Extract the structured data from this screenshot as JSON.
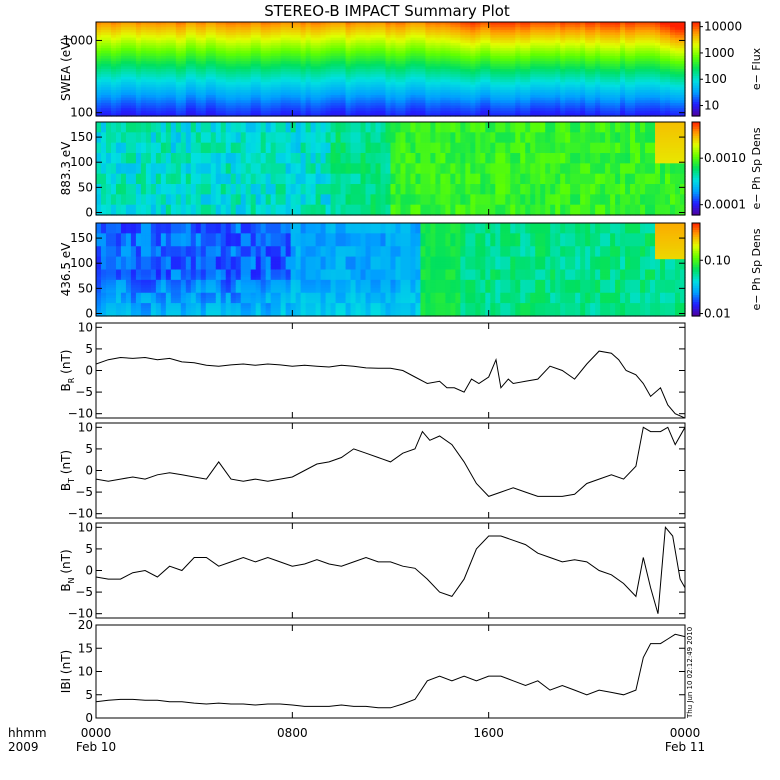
{
  "title": "STEREO-B IMPACT Summary Plot",
  "timestamp": "Thu Jun 10 02:12:49 2010",
  "footer": {
    "hhmm": "hhmm",
    "year": "2009"
  },
  "x_axis": {
    "ticks": [
      {
        "hours": 0,
        "line1": "0000",
        "line2": "Feb 10"
      },
      {
        "hours": 8,
        "line1": "0800",
        "line2": ""
      },
      {
        "hours": 16,
        "line1": "1600",
        "line2": ""
      },
      {
        "hours": 24,
        "line1": "0000",
        "line2": "Feb 11"
      }
    ],
    "range_hours": [
      0,
      24
    ]
  },
  "chart_data": [
    {
      "id": "swea",
      "type": "heatmap",
      "ylabel": "SWEA (eV)",
      "scale": "log",
      "ylim": [
        90,
        1800
      ],
      "yticks": [
        {
          "v": 100,
          "label": "100"
        },
        {
          "v": 1000,
          "label": "1000"
        }
      ],
      "colorbar": {
        "label": "e− Flux",
        "scale": "log",
        "range": [
          4,
          15000
        ],
        "ticks": [
          {
            "v": 10,
            "label": "10"
          },
          {
            "v": 100,
            "label": "100"
          },
          {
            "v": 1000,
            "label": "1000"
          },
          {
            "v": 10000,
            "label": "10000"
          }
        ]
      },
      "colormap": [
        "#5000a0",
        "#2020ff",
        "#00a0ff",
        "#00e0e0",
        "#00e060",
        "#60ff00",
        "#e0ff00",
        "#ffa000",
        "#ff2000"
      ]
    },
    {
      "id": "pad883",
      "type": "heatmap",
      "ylabel": "883.3 eV",
      "scale": "linear",
      "ylim": [
        -5,
        180
      ],
      "yticks": [
        {
          "v": 0,
          "label": "0"
        },
        {
          "v": 50,
          "label": "50"
        },
        {
          "v": 100,
          "label": "100"
        },
        {
          "v": 150,
          "label": "150"
        }
      ],
      "colorbar": {
        "label": "e− Ph Sp Dens",
        "scale": "log",
        "range": [
          6e-05,
          0.006
        ],
        "ticks": [
          {
            "v": 0.0001,
            "label": "0.0001"
          },
          {
            "v": 0.001,
            "label": "0.0010"
          }
        ]
      },
      "colormap": [
        "#5000a0",
        "#2020ff",
        "#00a0ff",
        "#00e0e0",
        "#00e060",
        "#60ff00",
        "#e0ff00",
        "#ffa000",
        "#ff2000"
      ]
    },
    {
      "id": "pad436",
      "type": "heatmap",
      "ylabel": "436.5 eV",
      "scale": "linear",
      "ylim": [
        -5,
        180
      ],
      "yticks": [
        {
          "v": 0,
          "label": "0"
        },
        {
          "v": 50,
          "label": "50"
        },
        {
          "v": 100,
          "label": "100"
        },
        {
          "v": 150,
          "label": "150"
        }
      ],
      "colorbar": {
        "label": "e− Ph Sp Dens",
        "scale": "log",
        "range": [
          0.009,
          0.5
        ],
        "ticks": [
          {
            "v": 0.01,
            "label": "0.01"
          },
          {
            "v": 0.1,
            "label": "0.10"
          }
        ]
      },
      "colormap": [
        "#5000a0",
        "#2020ff",
        "#00a0ff",
        "#00e0e0",
        "#00e060",
        "#60ff00",
        "#e0ff00",
        "#ffa000",
        "#ff2000"
      ]
    },
    {
      "id": "br",
      "type": "line",
      "ylabel": "B",
      "ylabel_sub": "R",
      "ylabel_unit": "(nT)",
      "ylim": [
        -11,
        11
      ],
      "yticks": [
        {
          "v": -10,
          "label": "−10"
        },
        {
          "v": -5,
          "label": "−5"
        },
        {
          "v": 0,
          "label": "0"
        },
        {
          "v": 5,
          "label": "5"
        },
        {
          "v": 10,
          "label": "10"
        }
      ],
      "x": [
        0,
        0.5,
        1,
        1.5,
        2,
        2.5,
        3,
        3.5,
        4,
        4.5,
        5,
        5.5,
        6,
        6.5,
        7,
        7.5,
        8,
        8.5,
        9,
        9.5,
        10,
        10.5,
        11,
        11.5,
        12,
        12.5,
        13,
        13.5,
        14,
        14.3,
        14.6,
        15,
        15.3,
        15.6,
        16,
        16.3,
        16.5,
        16.8,
        17,
        17.5,
        18,
        18.5,
        19,
        19.5,
        20,
        20.5,
        21,
        21.3,
        21.6,
        22,
        22.3,
        22.6,
        23,
        23.3,
        23.6,
        24
      ],
      "y": [
        1.5,
        2.5,
        3,
        2.8,
        3,
        2.5,
        2.8,
        2,
        1.8,
        1.2,
        1,
        1.3,
        1.5,
        1.2,
        1.5,
        1.3,
        1,
        1.2,
        1,
        0.8,
        1.2,
        1,
        0.6,
        0.5,
        0.5,
        0,
        -1.5,
        -3,
        -2.5,
        -4,
        -4,
        -5,
        -2,
        -3,
        -1.5,
        2.5,
        -4,
        -2,
        -3,
        -2.5,
        -2,
        1,
        0,
        -2,
        1.5,
        4.5,
        4,
        2.5,
        0,
        -1,
        -3,
        -6,
        -4,
        -8,
        -10,
        -11
      ]
    },
    {
      "id": "bt",
      "type": "line",
      "ylabel": "B",
      "ylabel_sub": "T",
      "ylabel_unit": "(nT)",
      "ylim": [
        -11,
        11
      ],
      "yticks": [
        {
          "v": -10,
          "label": "−10"
        },
        {
          "v": -5,
          "label": "−5"
        },
        {
          "v": 0,
          "label": "0"
        },
        {
          "v": 5,
          "label": "5"
        },
        {
          "v": 10,
          "label": "10"
        }
      ],
      "x": [
        0,
        0.5,
        1,
        1.5,
        2,
        2.5,
        3,
        3.5,
        4,
        4.5,
        5,
        5.5,
        6,
        6.5,
        7,
        7.5,
        8,
        8.5,
        9,
        9.5,
        10,
        10.5,
        11,
        11.5,
        12,
        12.5,
        13,
        13.3,
        13.6,
        14,
        14.5,
        15,
        15.5,
        16,
        16.5,
        17,
        17.5,
        18,
        18.5,
        19,
        19.5,
        20,
        20.5,
        21,
        21.5,
        22,
        22.3,
        22.6,
        23,
        23.3,
        23.6,
        24
      ],
      "y": [
        -2,
        -2.5,
        -2,
        -1.5,
        -2,
        -1,
        -0.5,
        -1,
        -1.5,
        -2,
        2,
        -2,
        -2.5,
        -2,
        -2.5,
        -2,
        -1.5,
        0,
        1.5,
        2,
        3,
        5,
        4,
        3,
        2,
        4,
        5,
        9,
        7,
        8,
        6,
        2,
        -3,
        -6,
        -5,
        -4,
        -5,
        -6,
        -6,
        -6,
        -5.5,
        -3,
        -2,
        -1,
        -2,
        1,
        10,
        9,
        9,
        10,
        6,
        10
      ]
    },
    {
      "id": "bn",
      "type": "line",
      "ylabel": "B",
      "ylabel_sub": "N",
      "ylabel_unit": "(nT)",
      "ylim": [
        -11,
        11
      ],
      "yticks": [
        {
          "v": -10,
          "label": "−10"
        },
        {
          "v": -5,
          "label": "−5"
        },
        {
          "v": 0,
          "label": "0"
        },
        {
          "v": 5,
          "label": "5"
        },
        {
          "v": 10,
          "label": "10"
        }
      ],
      "x": [
        0,
        0.5,
        1,
        1.5,
        2,
        2.5,
        3,
        3.5,
        4,
        4.5,
        5,
        5.5,
        6,
        6.5,
        7,
        7.5,
        8,
        8.5,
        9,
        9.5,
        10,
        10.5,
        11,
        11.5,
        12,
        12.5,
        13,
        13.5,
        14,
        14.5,
        15,
        15.5,
        16,
        16.5,
        17,
        17.5,
        18,
        18.5,
        19,
        19.5,
        20,
        20.5,
        21,
        21.5,
        22,
        22.3,
        22.6,
        22.9,
        23.2,
        23.5,
        23.8,
        24
      ],
      "y": [
        -1.5,
        -2,
        -2,
        -0.5,
        0,
        -1.5,
        1,
        0,
        3,
        3,
        1,
        2,
        3,
        2,
        3,
        2,
        1,
        1.5,
        2.5,
        1.5,
        1,
        2,
        3,
        2,
        2,
        1,
        0.5,
        -2,
        -5,
        -6,
        -2,
        5,
        8,
        8,
        7,
        6,
        4,
        3,
        2,
        2.5,
        2,
        0,
        -1,
        -3,
        -6,
        3,
        -4,
        -10,
        10,
        8,
        -2,
        -4
      ]
    },
    {
      "id": "bmag",
      "type": "line",
      "ylabel": "IBI",
      "ylabel_sub": "",
      "ylabel_unit": "(nT)",
      "ylim": [
        0,
        20
      ],
      "yticks": [
        {
          "v": 0,
          "label": "0"
        },
        {
          "v": 5,
          "label": "5"
        },
        {
          "v": 10,
          "label": "10"
        },
        {
          "v": 15,
          "label": "15"
        },
        {
          "v": 20,
          "label": "20"
        }
      ],
      "x": [
        0,
        0.5,
        1,
        1.5,
        2,
        2.5,
        3,
        3.5,
        4,
        4.5,
        5,
        5.5,
        6,
        6.5,
        7,
        7.5,
        8,
        8.5,
        9,
        9.5,
        10,
        10.5,
        11,
        11.5,
        12,
        12.5,
        13,
        13.5,
        14,
        14.5,
        15,
        15.5,
        16,
        16.5,
        17,
        17.5,
        18,
        18.5,
        19,
        19.5,
        20,
        20.5,
        21,
        21.5,
        22,
        22.3,
        22.6,
        23,
        23.3,
        23.6,
        24
      ],
      "y": [
        3.5,
        3.8,
        4,
        4,
        3.8,
        3.8,
        3.5,
        3.5,
        3.2,
        3,
        3.2,
        3,
        3,
        2.8,
        3,
        3,
        2.8,
        2.5,
        2.5,
        2.5,
        2.8,
        2.5,
        2.5,
        2.2,
        2.2,
        3,
        4,
        8,
        9,
        8,
        9,
        8,
        9,
        9,
        8,
        7,
        8,
        6,
        7,
        6,
        5,
        6,
        5.5,
        5,
        6,
        13,
        16,
        16,
        17,
        18,
        17.5
      ]
    }
  ]
}
